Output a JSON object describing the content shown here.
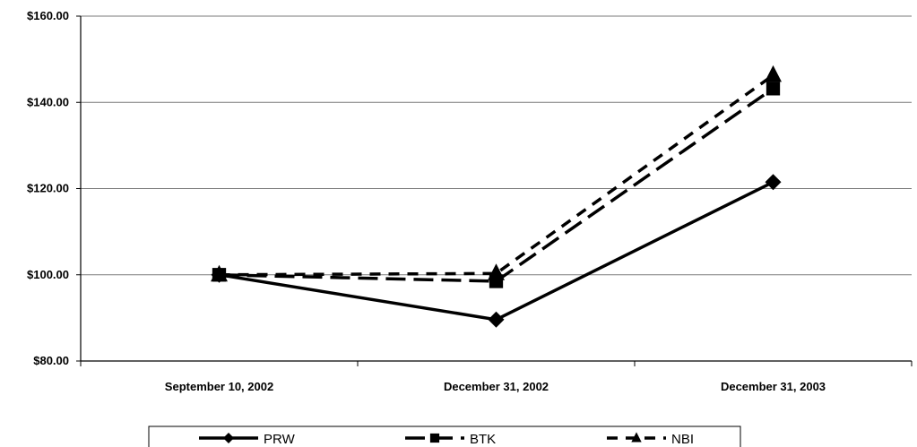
{
  "chart_data": {
    "type": "line",
    "title": "",
    "xlabel": "",
    "ylabel": "",
    "categories": [
      "September 10, 2002",
      "December 31, 2002",
      "December 31, 2003"
    ],
    "ylim": [
      80,
      160
    ],
    "yticks": [
      80,
      100,
      120,
      140,
      160
    ],
    "ytick_labels": [
      "$80.00",
      "$100.00",
      "$120.00",
      "$140.00",
      "$160.00"
    ],
    "grid": true,
    "legend_position": "bottom",
    "series": [
      {
        "name": "PRW",
        "values": [
          100,
          89.6,
          121.5
        ],
        "marker": "diamond",
        "line_style": "solid",
        "color": "#000000"
      },
      {
        "name": "BTK",
        "values": [
          100,
          98.5,
          143.2
        ],
        "marker": "square",
        "line_style": "dashed",
        "color": "#000000"
      },
      {
        "name": "NBI",
        "values": [
          100,
          100.3,
          146.3
        ],
        "marker": "triangle",
        "line_style": "dotted-dash",
        "color": "#000000"
      }
    ]
  }
}
